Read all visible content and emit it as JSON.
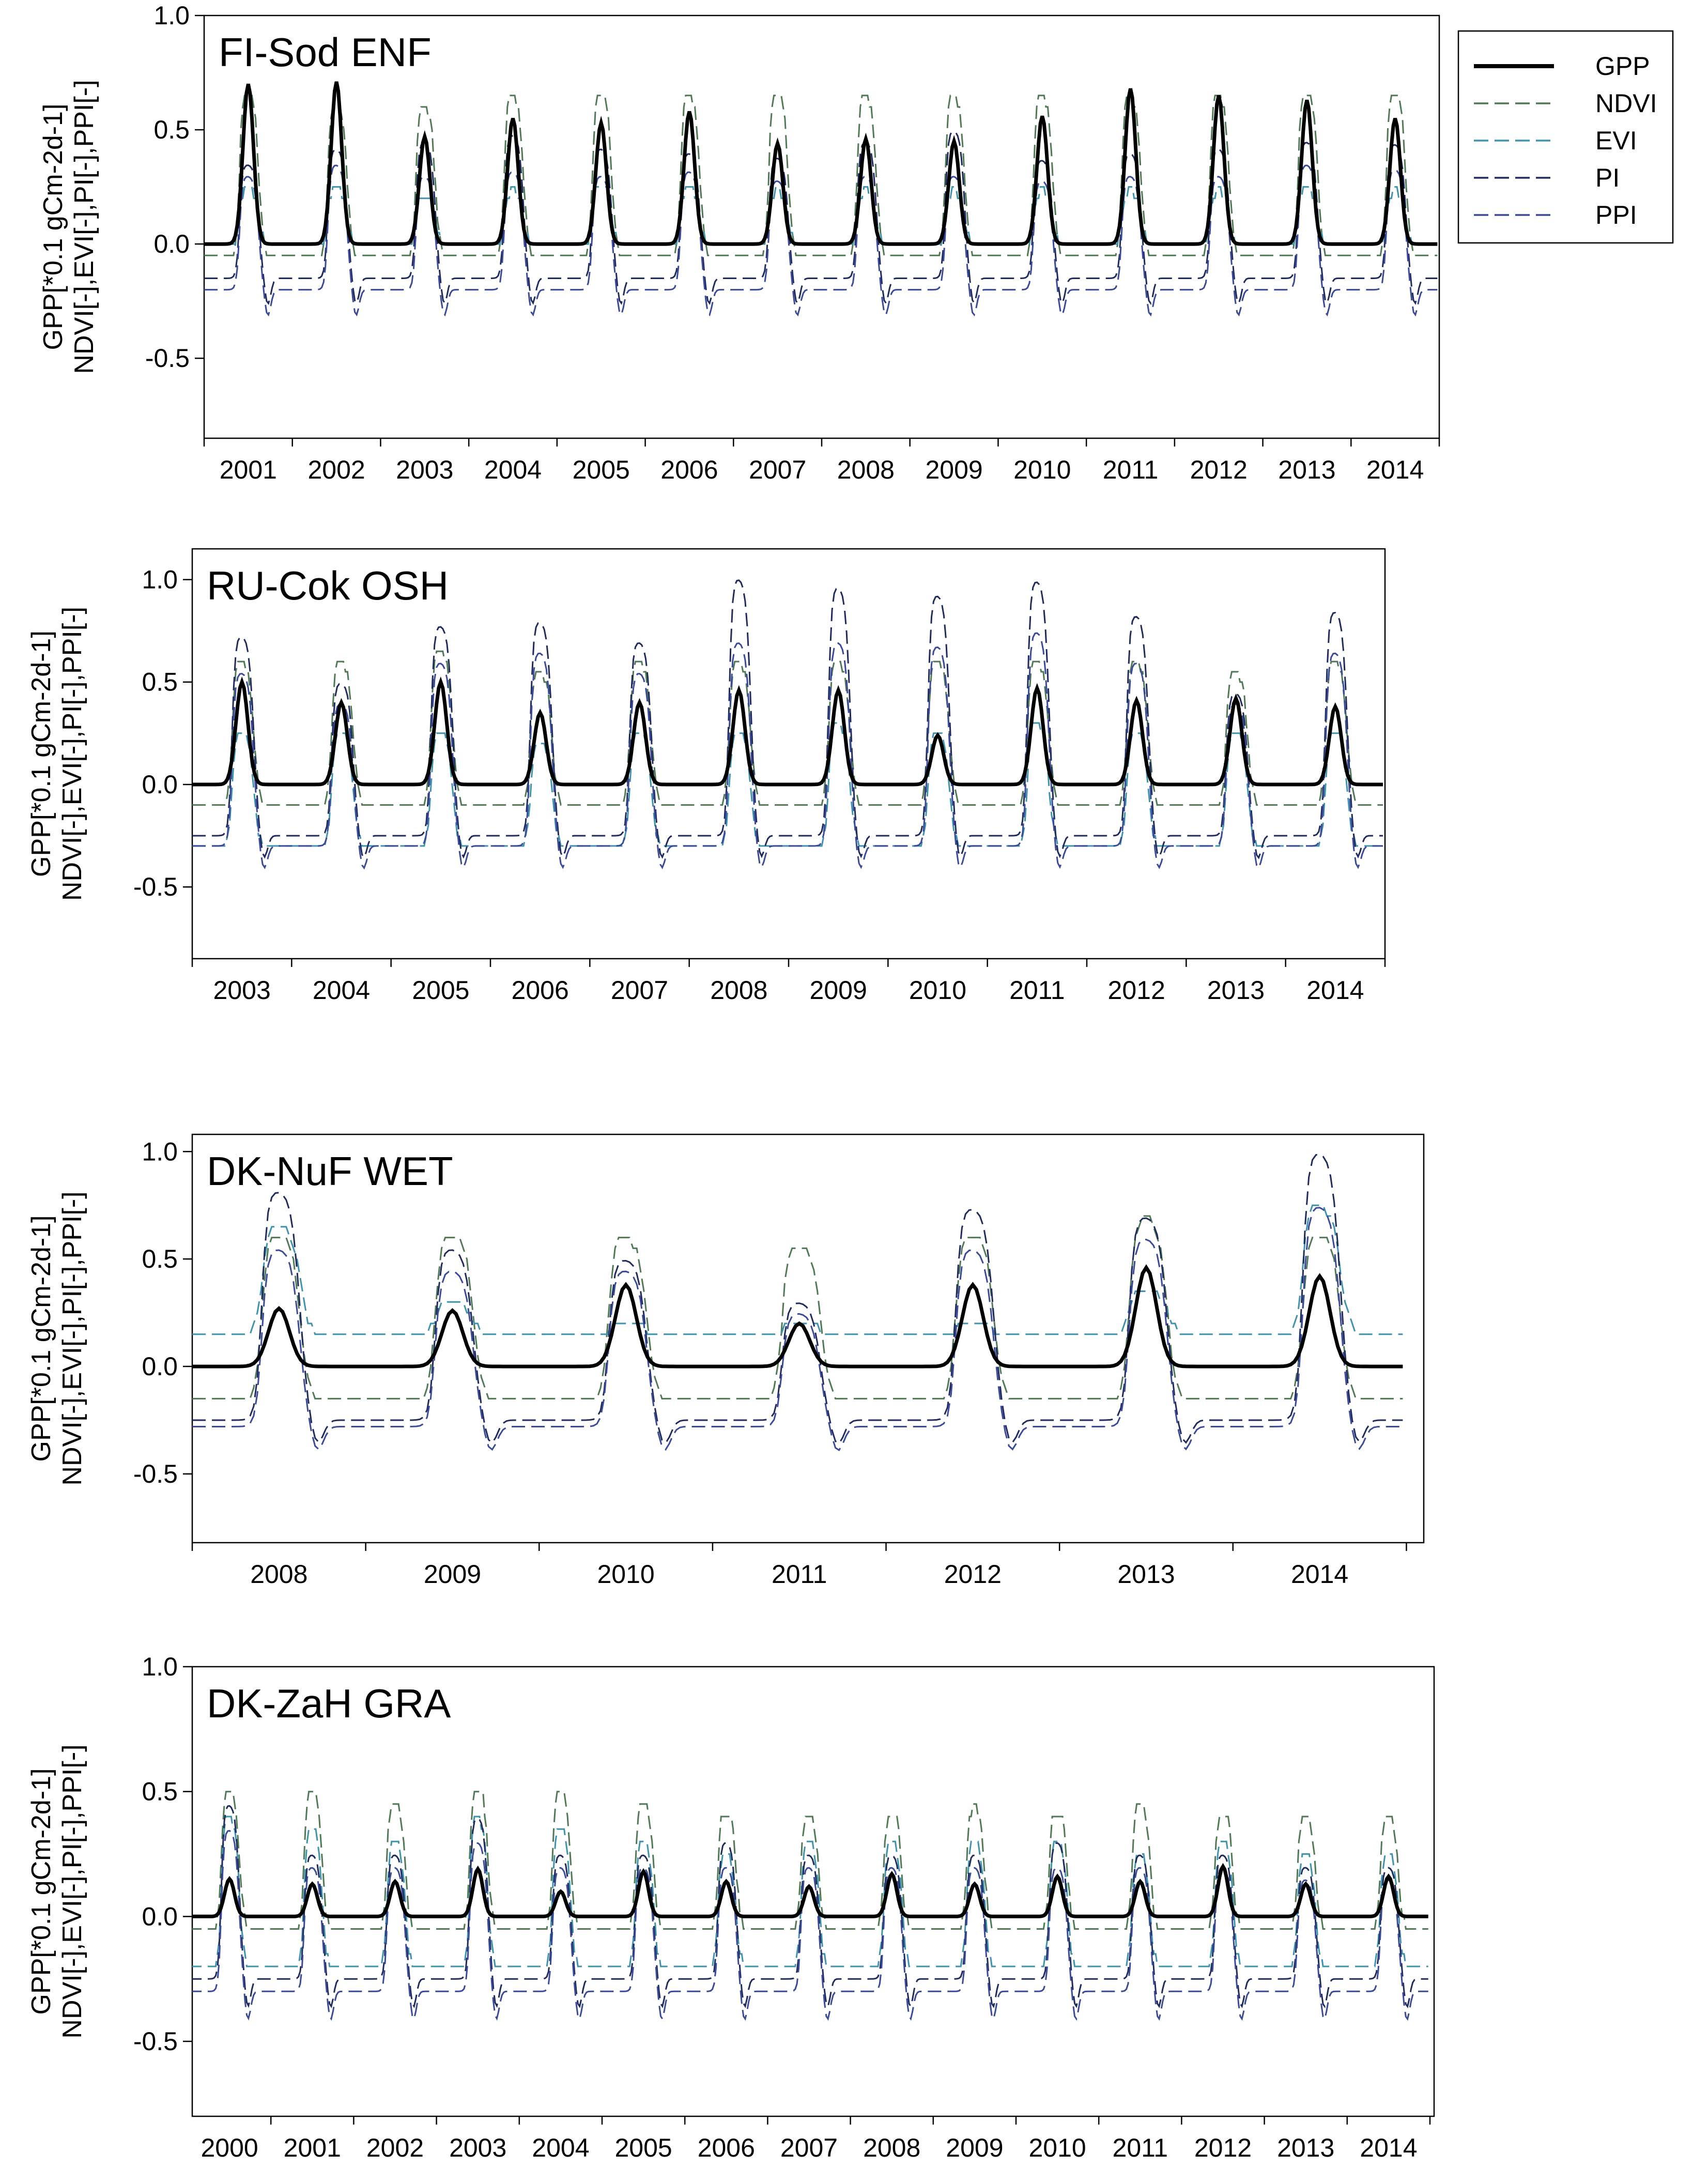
{
  "chart_data": [
    {
      "type": "line",
      "title": "FI-Sod ENF",
      "ylabel_line1": "GPP[*0.1 gCm-2d-1]",
      "ylabel_line2": "NDVI[-],EVI[-],PI[-],PPI[-]",
      "ylim": [
        -0.85,
        1.0
      ],
      "xlim": [
        2000.5,
        2014.5
      ],
      "yticks": [
        -0.5,
        0.0,
        0.5,
        1.0
      ],
      "ytick_labels": [
        "-0.5",
        "0.0",
        "0.5",
        "1.0"
      ],
      "xtick_labels": [
        "2001",
        "2002",
        "2003",
        "2004",
        "2005",
        "2006",
        "2007",
        "2008",
        "2009",
        "2010",
        "2011",
        "2012",
        "2013",
        "2014"
      ],
      "series": [
        {
          "name": "GPP",
          "peaks": [
            0.7,
            0.71,
            0.47,
            0.55,
            0.53,
            0.58,
            0.44,
            0.46,
            0.45,
            0.56,
            0.68,
            0.65,
            0.63,
            0.55
          ],
          "base": 0.0
        },
        {
          "name": "NDVI",
          "peaks": [
            0.67,
            0.62,
            0.6,
            0.65,
            0.66,
            0.65,
            0.67,
            0.65,
            0.65,
            0.65,
            0.65,
            0.65,
            0.68,
            0.67
          ],
          "base": -0.05
        },
        {
          "name": "EVI",
          "peaks": [
            0.24,
            0.24,
            0.22,
            0.23,
            0.25,
            0.24,
            0.23,
            0.23,
            0.23,
            0.23,
            0.23,
            0.23,
            0.24,
            0.23
          ],
          "base": 0.0
        },
        {
          "name": "PI",
          "peaks": [
            0.35,
            0.42,
            0.45,
            0.48,
            0.42,
            0.4,
            0.38,
            0.45,
            0.5,
            0.37,
            0.4,
            0.42,
            0.45,
            0.44
          ],
          "base": -0.15
        },
        {
          "name": "PPI",
          "peaks": [
            0.3,
            0.35,
            0.3,
            0.32,
            0.3,
            0.32,
            0.28,
            0.3,
            0.3,
            0.28,
            0.3,
            0.3,
            0.35,
            0.33
          ],
          "base": -0.2
        }
      ]
    },
    {
      "type": "line",
      "title": "RU-Cok OSH",
      "ylabel_line1": "GPP[*0.1 gCm-2d-1]",
      "ylabel_line2": "NDVI[-],EVI[-],PI[-],PPI[-]",
      "ylim": [
        -0.85,
        1.15
      ],
      "xlim": [
        2002.5,
        2014.5
      ],
      "yticks": [
        -0.5,
        0.0,
        0.5,
        1.0
      ],
      "ytick_labels": [
        "-0.5",
        "0.0",
        "0.5",
        "1.0"
      ],
      "xtick_labels": [
        "2003",
        "2004",
        "2005",
        "2006",
        "2007",
        "2008",
        "2009",
        "2010",
        "2011",
        "2012",
        "2013",
        "2014"
      ],
      "series": [
        {
          "name": "GPP",
          "peaks": [
            0.5,
            0.4,
            0.5,
            0.35,
            0.4,
            0.46,
            0.46,
            0.24,
            0.47,
            0.41,
            0.42,
            0.38
          ],
          "base": 0.0
        },
        {
          "name": "NDVI",
          "peaks": [
            0.6,
            0.6,
            0.65,
            0.55,
            0.6,
            0.6,
            0.6,
            0.6,
            0.6,
            0.6,
            0.55,
            0.6
          ],
          "base": -0.1
        },
        {
          "name": "EVI",
          "peaks": [
            0.25,
            0.25,
            0.25,
            0.2,
            0.25,
            0.25,
            0.3,
            0.25,
            0.3,
            0.25,
            0.25,
            0.25
          ],
          "base": -0.3
        },
        {
          "name": "PI",
          "peaks": [
            0.73,
            0.5,
            0.78,
            0.8,
            0.7,
            1.01,
            0.97,
            0.93,
            1.0,
            0.83,
            0.45,
            0.85
          ],
          "base": -0.25
        },
        {
          "name": "PPI",
          "peaks": [
            0.55,
            0.4,
            0.6,
            0.65,
            0.55,
            0.7,
            0.7,
            0.68,
            0.75,
            0.6,
            0.4,
            0.65
          ],
          "base": -0.3
        }
      ]
    },
    {
      "type": "line",
      "title": "DK-NuF WET",
      "ylabel_line1": "GPP[*0.1 gCm-2d-1]",
      "ylabel_line2": "NDVI[-],EVI[-],PI[-],PPI[-]",
      "ylim": [
        -0.82,
        1.08
      ],
      "xlim": [
        2007.5,
        2014.6
      ],
      "yticks": [
        -0.5,
        0.0,
        0.5,
        1.0
      ],
      "ytick_labels": [
        "-0.5",
        "0.0",
        "0.5",
        "1.0"
      ],
      "xtick_labels": [
        "2008",
        "2009",
        "2010",
        "2011",
        "2012",
        "2013",
        "2014"
      ],
      "series": [
        {
          "name": "GPP",
          "peaks": [
            0.27,
            0.26,
            0.38,
            0.2,
            0.38,
            0.46,
            0.42
          ],
          "base": 0.0
        },
        {
          "name": "NDVI",
          "peaks": [
            0.63,
            0.62,
            0.6,
            0.58,
            0.62,
            0.7,
            0.62
          ],
          "base": -0.15
        },
        {
          "name": "EVI",
          "peaks": [
            0.65,
            0.3,
            0.2,
            0.2,
            0.2,
            0.35,
            0.75
          ],
          "base": 0.15
        },
        {
          "name": "PI",
          "peaks": [
            0.82,
            0.55,
            0.5,
            0.3,
            0.74,
            0.7,
            1.0
          ],
          "base": -0.25
        },
        {
          "name": "PPI",
          "peaks": [
            0.55,
            0.45,
            0.45,
            0.25,
            0.55,
            0.6,
            0.75
          ],
          "base": -0.28
        }
      ]
    },
    {
      "type": "line",
      "title": "DK-ZaH GRA",
      "ylabel_line1": "GPP[*0.1 gCm-2d-1]",
      "ylabel_line2": "NDVI[-],EVI[-],PI[-],PPI[-]",
      "ylim": [
        -0.8,
        1.0
      ],
      "xlim": [
        1999.55,
        2014.55
      ],
      "yticks": [
        -0.5,
        0.0,
        0.5,
        1.0
      ],
      "ytick_labels": [
        "-0.5",
        "0.0",
        "0.5",
        "1.0"
      ],
      "xtick_labels": [
        "2000",
        "2001",
        "2002",
        "2003",
        "2004",
        "2005",
        "2006",
        "2007",
        "2008",
        "2009",
        "2010",
        "2011",
        "2012",
        "2013",
        "2014"
      ],
      "series": [
        {
          "name": "GPP",
          "peaks": [
            0.15,
            0.13,
            0.14,
            0.19,
            0.1,
            0.18,
            0.14,
            0.12,
            0.17,
            0.13,
            0.16,
            0.14,
            0.2,
            0.13,
            0.16
          ],
          "base": 0.0
        },
        {
          "name": "NDVI",
          "peaks": [
            0.52,
            0.5,
            0.47,
            0.53,
            0.5,
            0.45,
            0.43,
            0.41,
            0.42,
            0.44,
            0.43,
            0.45,
            0.42,
            0.4,
            0.4
          ],
          "base": -0.05
        },
        {
          "name": "EVI",
          "peaks": [
            0.4,
            0.35,
            0.3,
            0.4,
            0.35,
            0.3,
            0.25,
            0.3,
            0.3,
            0.3,
            0.3,
            0.25,
            0.3,
            0.25,
            0.25
          ],
          "base": -0.2
        },
        {
          "name": "PI",
          "peaks": [
            0.45,
            0.25,
            0.25,
            0.4,
            0.25,
            0.25,
            0.3,
            0.25,
            0.25,
            0.25,
            0.3,
            0.25,
            0.25,
            0.2,
            0.2
          ],
          "base": -0.25
        },
        {
          "name": "PPI",
          "peaks": [
            0.35,
            0.2,
            0.2,
            0.3,
            0.2,
            0.2,
            0.2,
            0.2,
            0.2,
            0.2,
            0.2,
            0.2,
            0.2,
            0.15,
            0.15
          ],
          "base": -0.3
        }
      ]
    }
  ],
  "legend": {
    "position": "top-right",
    "items": [
      {
        "label": "GPP",
        "color": "#000000",
        "dashed": false
      },
      {
        "label": "NDVI",
        "color": "#4f7a55",
        "dashed": true
      },
      {
        "label": "EVI",
        "color": "#3f93ad",
        "dashed": true
      },
      {
        "label": "PI",
        "color": "#1f2b5c",
        "dashed": true
      },
      {
        "label": "PPI",
        "color": "#3a4a99",
        "dashed": true
      }
    ]
  }
}
